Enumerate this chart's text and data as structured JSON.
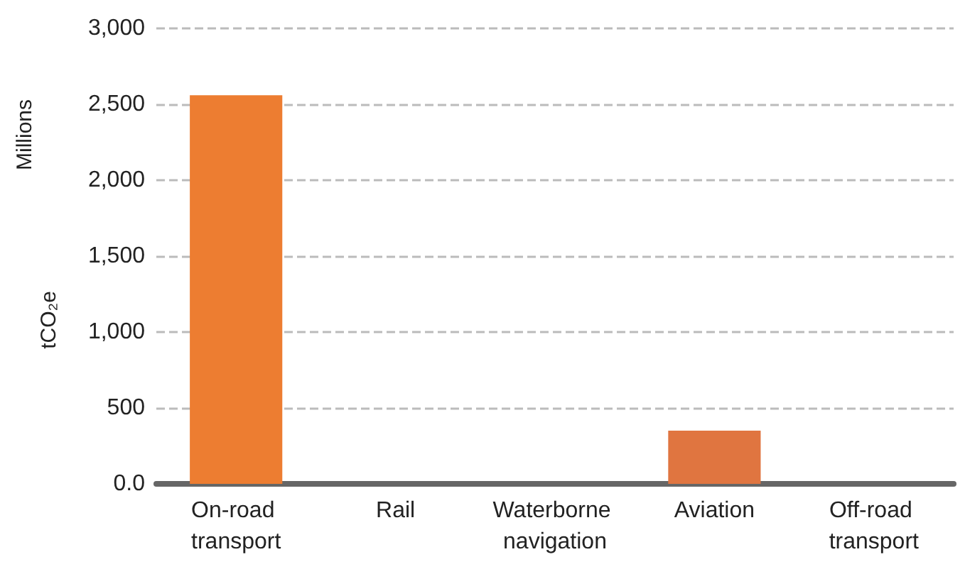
{
  "chart_data": {
    "type": "bar",
    "categories": [
      "On-road transport",
      "Rail",
      "Waterborne navigation",
      "Aviation",
      "Off-road transport"
    ],
    "values": [
      2560,
      0,
      0,
      350,
      0
    ],
    "colors": [
      "#ed7d31",
      "#ed7d31",
      "#ed7d31",
      "#e07540",
      "#ed7d31"
    ],
    "ylabel": "tCO₂e",
    "annotations": [
      "Millions"
    ],
    "ylim": [
      0,
      3000
    ],
    "yticks": [
      {
        "value": 0,
        "label": "0.0"
      },
      {
        "value": 500,
        "label": "500"
      },
      {
        "value": 1000,
        "label": "1,000"
      },
      {
        "value": 1500,
        "label": "1,500"
      },
      {
        "value": 2000,
        "label": "2,000"
      },
      {
        "value": 2500,
        "label": "2,500"
      },
      {
        "value": 3000,
        "label": "3,000"
      }
    ],
    "grid": "y"
  }
}
